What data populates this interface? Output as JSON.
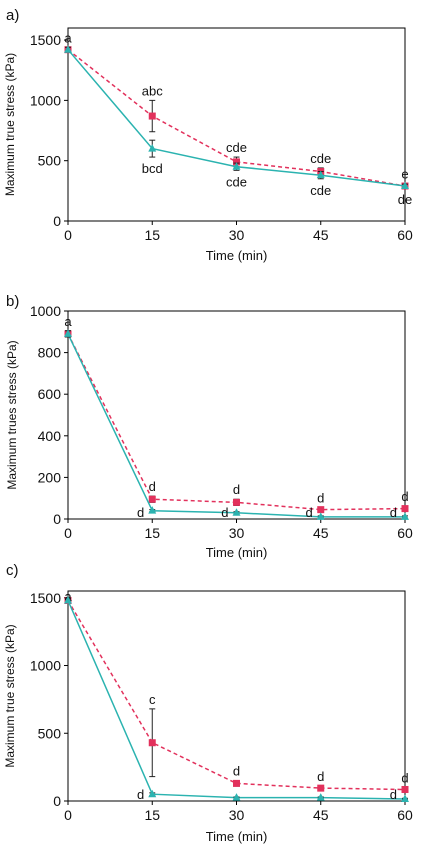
{
  "colors": {
    "series_solid": "#2bb3b0",
    "series_dashed": "#e2315c",
    "axis": "#000000",
    "error_bar": "#222222"
  },
  "chart_data": [
    {
      "panel": "a)",
      "type": "line",
      "xlabel": "Time (min)",
      "ylabel": "Maximum true stress (kPa)",
      "x": [
        0,
        15,
        30,
        45,
        60
      ],
      "xticks": [
        "0",
        "15",
        "30",
        "45",
        "60"
      ],
      "yticks": [
        "0",
        "500",
        "1000",
        "1500"
      ],
      "xlim": [
        0,
        60
      ],
      "ylim": [
        0,
        1600
      ],
      "grid": false,
      "series": [
        {
          "style": "dashed",
          "marker": "square",
          "color": "#e2315c",
          "values": [
            1420,
            870,
            490,
            410,
            290
          ],
          "errors": [
            20,
            130,
            40,
            30,
            20
          ],
          "letters": [
            "a",
            "abc",
            "cde",
            "cde",
            "e"
          ]
        },
        {
          "style": "solid",
          "marker": "triangle",
          "color": "#2bb3b0",
          "values": [
            1420,
            600,
            450,
            380,
            290
          ],
          "errors": [
            20,
            70,
            30,
            30,
            15
          ],
          "letters": [
            "",
            "bcd",
            "cde",
            "cde",
            "de"
          ]
        }
      ]
    },
    {
      "panel": "b)",
      "type": "line",
      "xlabel": "Time (min)",
      "ylabel": "Maximum trues stress (kPa)",
      "x": [
        0,
        15,
        30,
        45,
        60
      ],
      "xticks": [
        "0",
        "15",
        "30",
        "45",
        "60"
      ],
      "yticks": [
        "0",
        "200",
        "400",
        "600",
        "800",
        "1000"
      ],
      "xlim": [
        0,
        60
      ],
      "ylim": [
        0,
        1000
      ],
      "grid": false,
      "series": [
        {
          "style": "dashed",
          "marker": "square",
          "color": "#e2315c",
          "values": [
            890,
            95,
            80,
            45,
            50
          ],
          "errors": [
            15,
            15,
            15,
            10,
            12
          ],
          "letters": [
            "a",
            "d",
            "d",
            "d",
            "d"
          ]
        },
        {
          "style": "solid",
          "marker": "triangle",
          "color": "#2bb3b0",
          "values": [
            890,
            40,
            30,
            10,
            10
          ],
          "errors": [
            15,
            5,
            5,
            5,
            5
          ],
          "letters": [
            "",
            "d",
            "d",
            "d",
            "d"
          ]
        }
      ]
    },
    {
      "panel": "c)",
      "type": "line",
      "xlabel": "Time (min)",
      "ylabel": "Maximum true stress (kPa)",
      "x": [
        0,
        15,
        30,
        45,
        60
      ],
      "xticks": [
        "0",
        "15",
        "30",
        "45",
        "60"
      ],
      "yticks": [
        "0",
        "500",
        "1000",
        "1500"
      ],
      "xlim": [
        0,
        60
      ],
      "ylim": [
        0,
        1550
      ],
      "grid": false,
      "series": [
        {
          "style": "dashed",
          "marker": "square",
          "color": "#e2315c",
          "values": [
            1480,
            430,
            130,
            95,
            85
          ],
          "errors": [
            15,
            250,
            20,
            15,
            15
          ],
          "letters": [
            "a",
            "c",
            "d",
            "d",
            "d"
          ]
        },
        {
          "style": "solid",
          "marker": "triangle",
          "color": "#2bb3b0",
          "values": [
            1480,
            50,
            25,
            25,
            15
          ],
          "errors": [
            15,
            10,
            5,
            5,
            5
          ],
          "letters": [
            "",
            "d",
            "",
            "",
            "d"
          ]
        }
      ]
    }
  ]
}
